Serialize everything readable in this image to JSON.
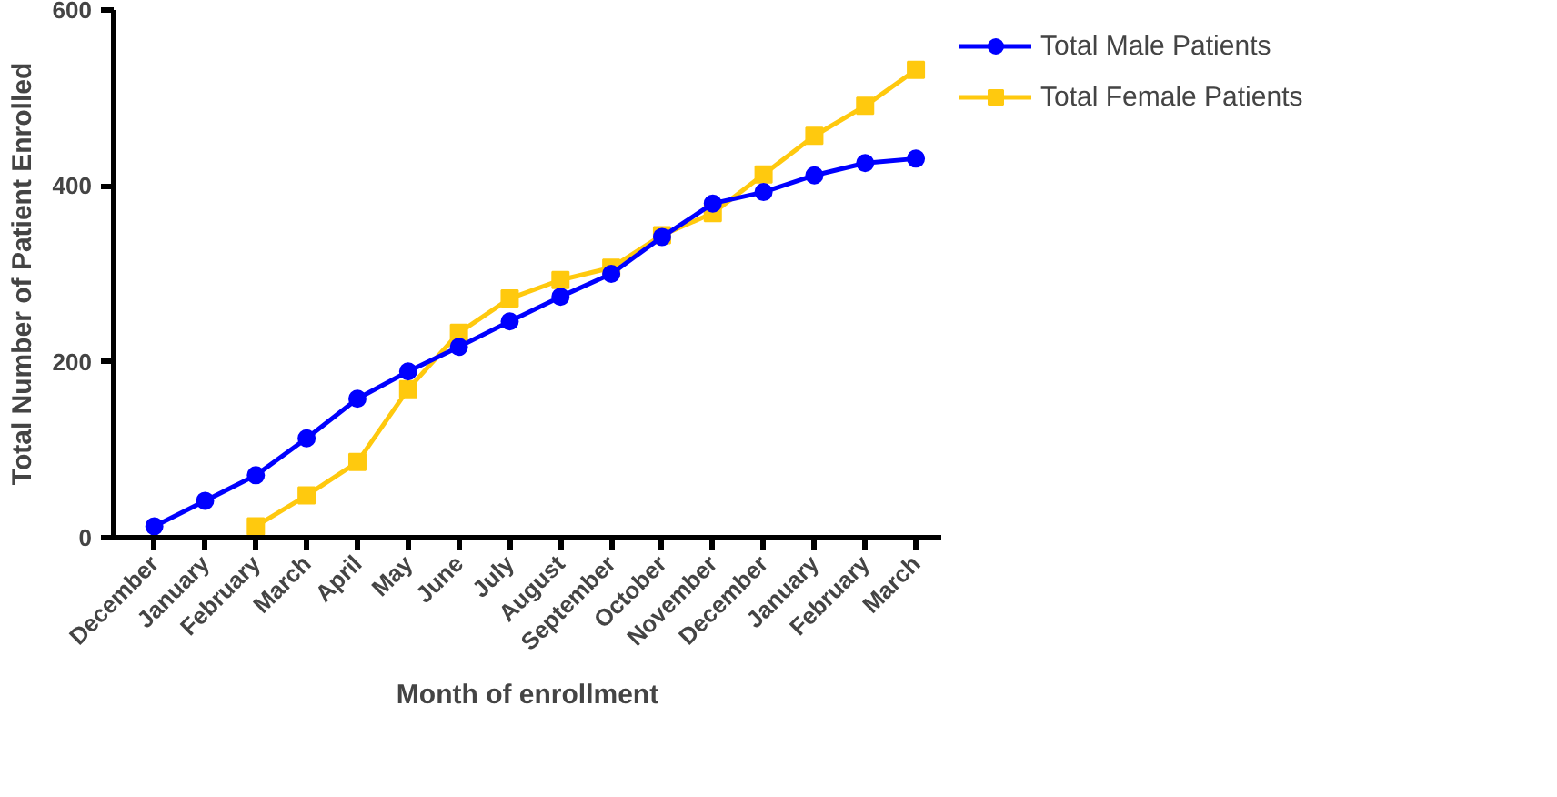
{
  "chart_data": {
    "type": "line",
    "xlabel": "Month of enrollment",
    "ylabel": "Total Number of Patient Enrolled",
    "categories": [
      "December",
      "January",
      "February",
      "March",
      "April",
      "May",
      "June",
      "July",
      "August",
      "September",
      "October",
      "November",
      "December",
      "January",
      "February",
      "March"
    ],
    "series": [
      {
        "name": "Total Male Patients",
        "color": "#0000ff",
        "marker": "circle",
        "values": [
          13,
          42,
          71,
          113,
          158,
          189,
          217,
          246,
          274,
          300,
          342,
          380,
          393,
          412,
          426,
          431
        ]
      },
      {
        "name": "Total Female Patients",
        "color": "#ffc90e",
        "marker": "square",
        "values": [
          null,
          null,
          13,
          48,
          86,
          169,
          233,
          272,
          293,
          307,
          344,
          369,
          413,
          457,
          491,
          532
        ]
      }
    ],
    "ylim": [
      0,
      600
    ],
    "yticks": [
      0,
      200,
      400,
      600
    ],
    "grid": false,
    "legend": "top right"
  }
}
